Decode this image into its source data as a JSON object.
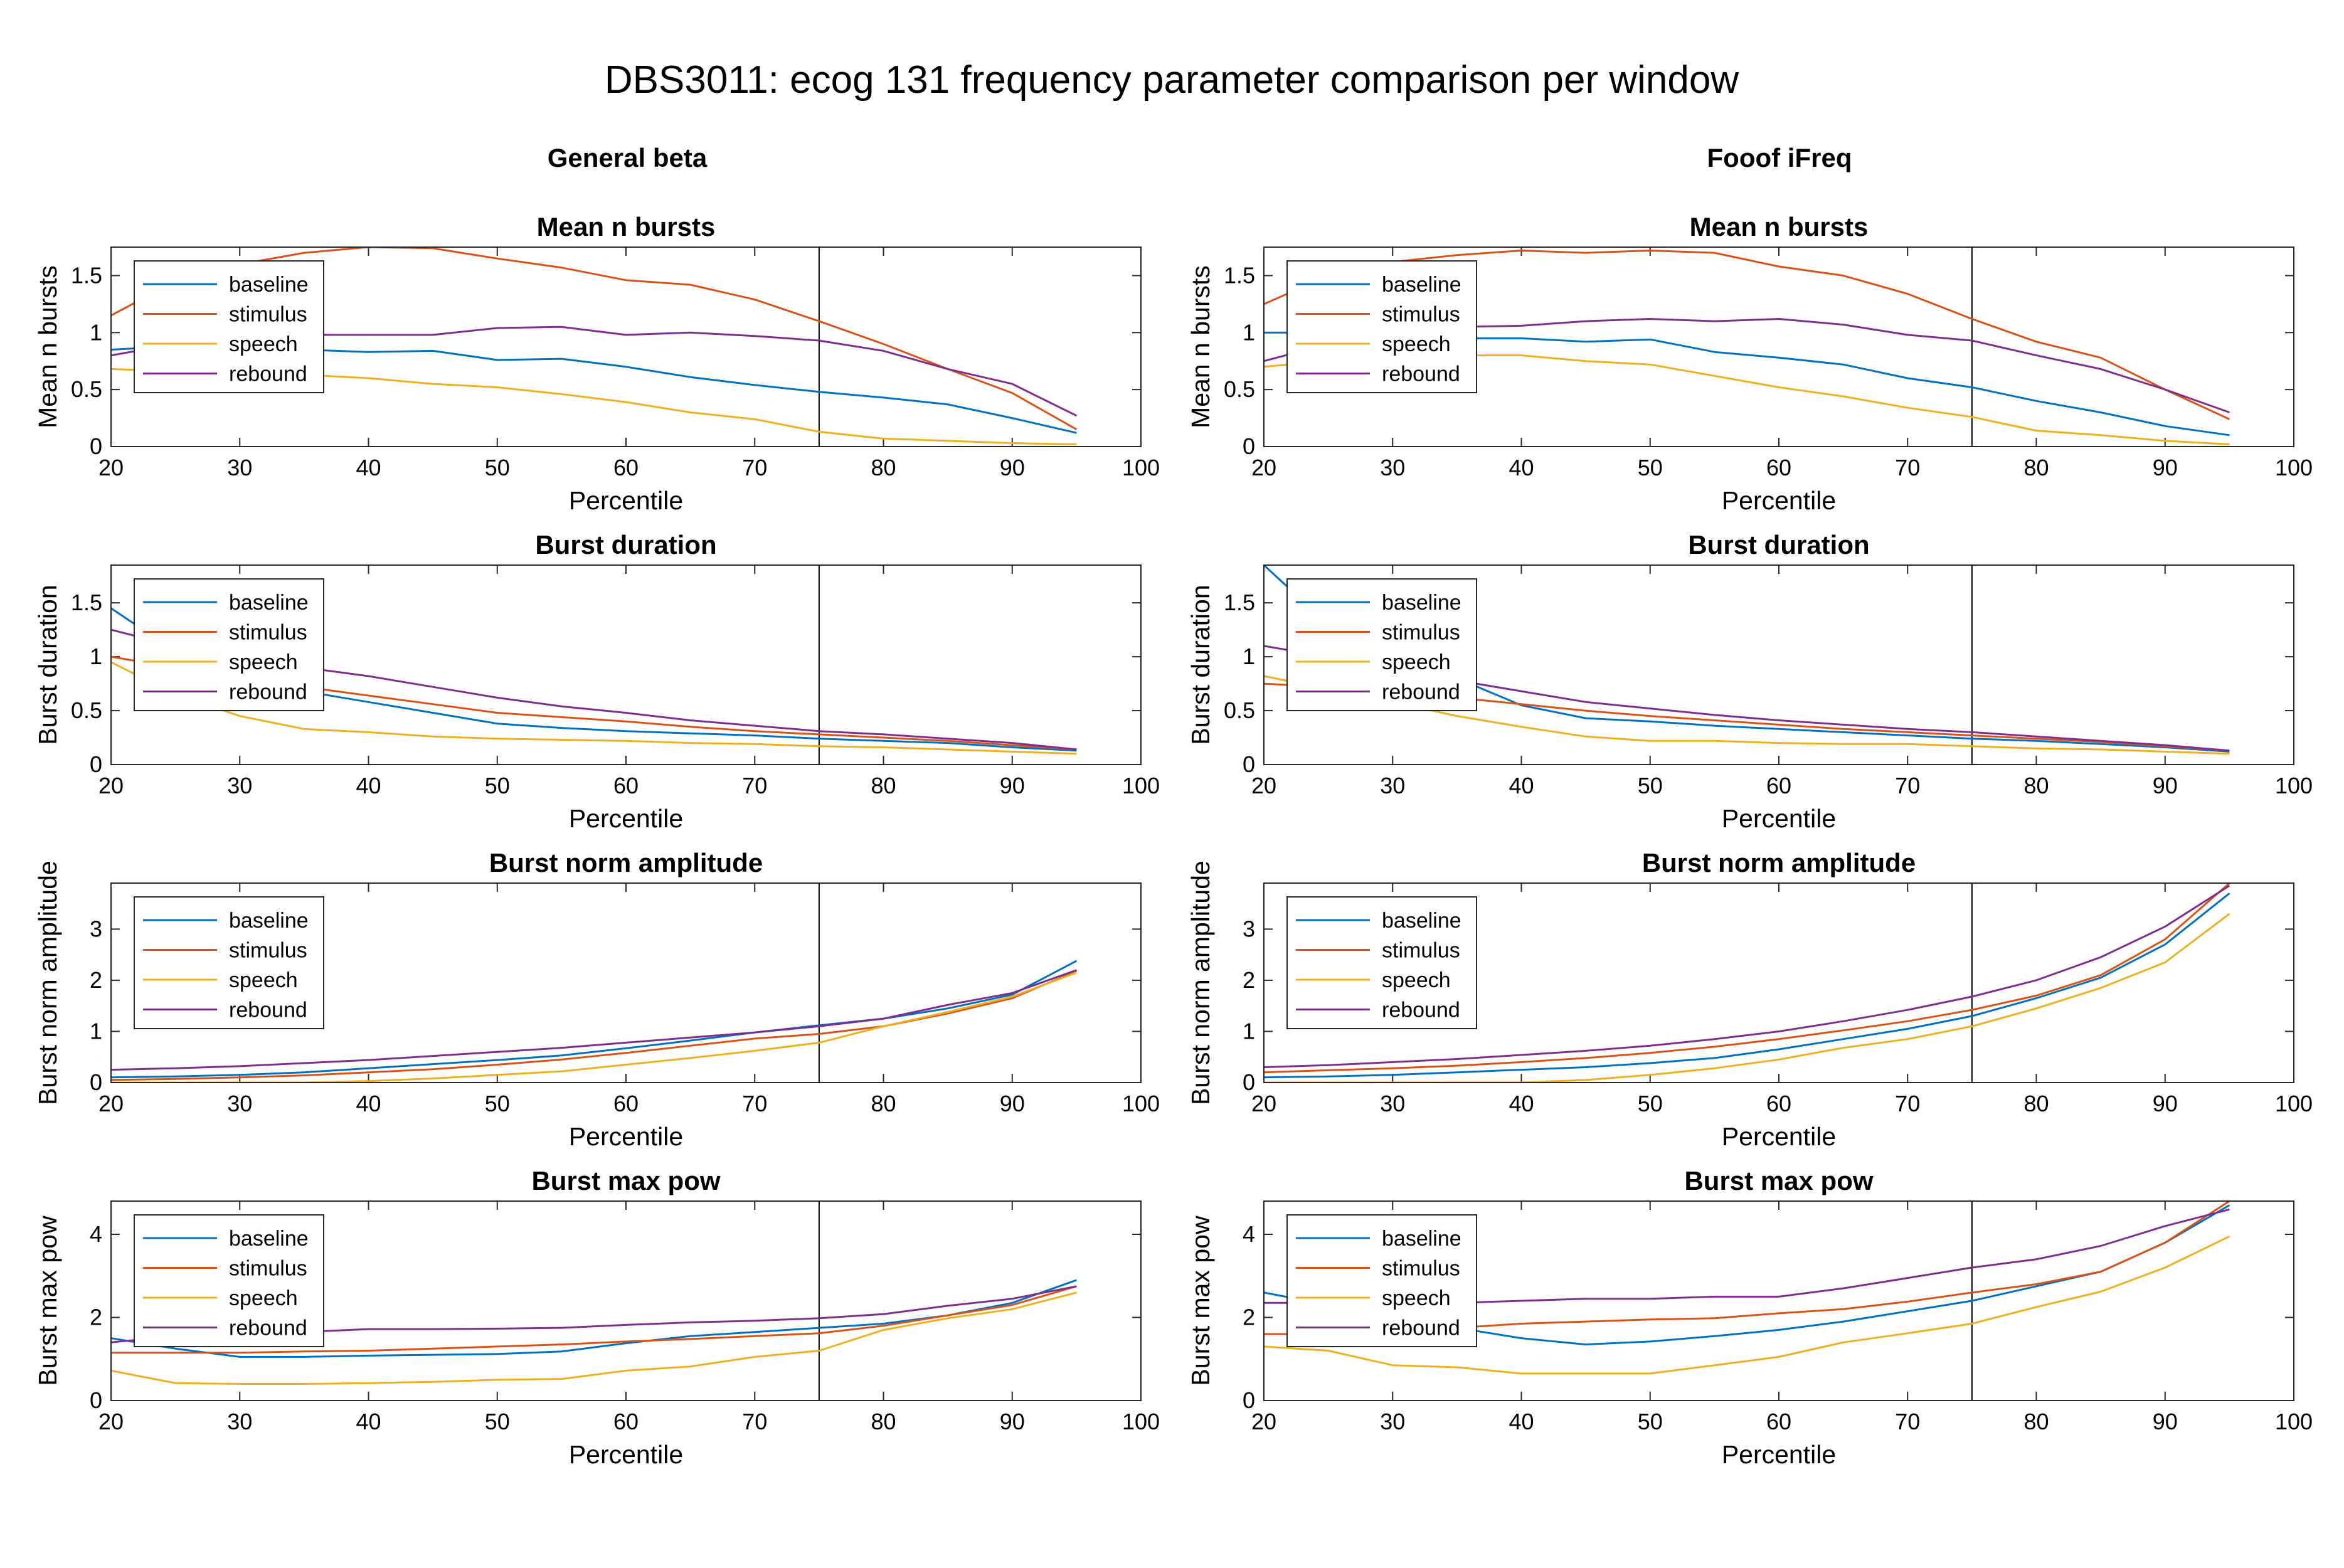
{
  "figure": {
    "title": "DBS3011: ecog 131 frequency parameter comparison per window",
    "columns": [
      "General beta",
      "Fooof iFreq"
    ],
    "background": "#ffffff"
  },
  "series_styles": [
    {
      "name": "baseline",
      "color": "#0072BD"
    },
    {
      "name": "stimulus",
      "color": "#D95319"
    },
    {
      "name": "speech",
      "color": "#EDB120"
    },
    {
      "name": "rebound",
      "color": "#7E2F8E"
    }
  ],
  "chart_data": [
    {
      "id": "gb-mean-n-bursts",
      "type": "line",
      "column": 0,
      "row": 0,
      "title": "Mean n bursts",
      "xlabel": "Percentile",
      "ylabel": "Mean n bursts",
      "xlim": [
        20,
        100
      ],
      "ylim": [
        0,
        1.75
      ],
      "xticks": [
        20,
        30,
        40,
        50,
        60,
        70,
        80,
        90,
        100
      ],
      "yticks": [
        0,
        0.5,
        1,
        1.5
      ],
      "vline": 75,
      "legend": "top-left",
      "x": [
        20,
        25,
        30,
        35,
        40,
        45,
        50,
        55,
        60,
        65,
        70,
        75,
        80,
        85,
        90,
        95
      ],
      "series": [
        {
          "name": "baseline",
          "values": [
            0.85,
            0.88,
            0.88,
            0.85,
            0.83,
            0.84,
            0.76,
            0.77,
            0.7,
            0.61,
            0.54,
            0.48,
            0.43,
            0.37,
            0.25,
            0.12
          ]
        },
        {
          "name": "stimulus",
          "values": [
            1.15,
            1.45,
            1.6,
            1.7,
            1.75,
            1.74,
            1.65,
            1.57,
            1.46,
            1.42,
            1.29,
            1.1,
            0.9,
            0.68,
            0.47,
            0.15
          ]
        },
        {
          "name": "speech",
          "values": [
            0.68,
            0.66,
            0.65,
            0.63,
            0.6,
            0.55,
            0.52,
            0.46,
            0.39,
            0.3,
            0.24,
            0.13,
            0.07,
            0.05,
            0.03,
            0.02
          ]
        },
        {
          "name": "rebound",
          "values": [
            0.8,
            0.9,
            0.95,
            0.98,
            0.98,
            0.98,
            1.04,
            1.05,
            0.98,
            1.0,
            0.97,
            0.93,
            0.84,
            0.68,
            0.55,
            0.27
          ]
        }
      ]
    },
    {
      "id": "gb-burst-duration",
      "type": "line",
      "column": 0,
      "row": 1,
      "title": "Burst duration",
      "xlabel": "Percentile",
      "ylabel": "Burst duration",
      "xlim": [
        20,
        100
      ],
      "ylim": [
        0,
        1.85
      ],
      "xticks": [
        20,
        30,
        40,
        50,
        60,
        70,
        80,
        90,
        100
      ],
      "yticks": [
        0,
        0.5,
        1,
        1.5
      ],
      "vline": 75,
      "legend": "top-left",
      "x": [
        20,
        25,
        30,
        35,
        40,
        45,
        50,
        55,
        60,
        65,
        70,
        75,
        80,
        85,
        90,
        95
      ],
      "series": [
        {
          "name": "baseline",
          "values": [
            1.45,
            1.05,
            0.78,
            0.68,
            0.58,
            0.48,
            0.38,
            0.34,
            0.31,
            0.29,
            0.27,
            0.24,
            0.22,
            0.2,
            0.16,
            0.13
          ]
        },
        {
          "name": "stimulus",
          "values": [
            1.0,
            0.9,
            0.82,
            0.72,
            0.64,
            0.56,
            0.48,
            0.44,
            0.4,
            0.35,
            0.31,
            0.28,
            0.25,
            0.22,
            0.18,
            0.14
          ]
        },
        {
          "name": "speech",
          "values": [
            0.95,
            0.65,
            0.45,
            0.33,
            0.3,
            0.26,
            0.24,
            0.23,
            0.22,
            0.2,
            0.19,
            0.17,
            0.16,
            0.14,
            0.12,
            0.1
          ]
        },
        {
          "name": "rebound",
          "values": [
            1.25,
            1.1,
            0.98,
            0.9,
            0.82,
            0.72,
            0.62,
            0.54,
            0.48,
            0.41,
            0.36,
            0.31,
            0.28,
            0.24,
            0.2,
            0.14
          ]
        }
      ]
    },
    {
      "id": "gb-burst-norm-amplitude",
      "type": "line",
      "column": 0,
      "row": 2,
      "title": "Burst norm amplitude",
      "xlabel": "Percentile",
      "ylabel": "Burst norm amplitude",
      "xlim": [
        20,
        100
      ],
      "ylim": [
        0,
        3.9
      ],
      "xticks": [
        20,
        30,
        40,
        50,
        60,
        70,
        80,
        90,
        100
      ],
      "yticks": [
        0,
        1,
        2,
        3
      ],
      "vline": 75,
      "legend": "top-left",
      "x": [
        20,
        25,
        30,
        35,
        40,
        45,
        50,
        55,
        60,
        65,
        70,
        75,
        80,
        85,
        90,
        95
      ],
      "series": [
        {
          "name": "baseline",
          "values": [
            0.1,
            0.12,
            0.15,
            0.2,
            0.28,
            0.36,
            0.44,
            0.53,
            0.67,
            0.82,
            0.98,
            1.12,
            1.25,
            1.45,
            1.72,
            2.38
          ]
        },
        {
          "name": "stimulus",
          "values": [
            0.05,
            0.07,
            0.1,
            0.14,
            0.2,
            0.26,
            0.35,
            0.45,
            0.58,
            0.72,
            0.86,
            0.95,
            1.1,
            1.35,
            1.65,
            2.18
          ]
        },
        {
          "name": "speech",
          "values": [
            0.0,
            0.0,
            0.0,
            0.0,
            0.03,
            0.08,
            0.15,
            0.22,
            0.35,
            0.48,
            0.62,
            0.78,
            1.1,
            1.38,
            1.68,
            2.15
          ]
        },
        {
          "name": "rebound",
          "values": [
            0.25,
            0.28,
            0.32,
            0.38,
            0.44,
            0.52,
            0.6,
            0.68,
            0.78,
            0.88,
            0.98,
            1.1,
            1.25,
            1.52,
            1.75,
            2.2
          ]
        }
      ]
    },
    {
      "id": "gb-burst-max-pow",
      "type": "line",
      "column": 0,
      "row": 3,
      "title": "Burst max pow",
      "xlabel": "Percentile",
      "ylabel": "Burst max pow",
      "xlim": [
        20,
        100
      ],
      "ylim": [
        0,
        4.8
      ],
      "xticks": [
        20,
        30,
        40,
        50,
        60,
        70,
        80,
        90,
        100
      ],
      "yticks": [
        0,
        2,
        4
      ],
      "vline": 75,
      "legend": "top-left",
      "x": [
        20,
        25,
        30,
        35,
        40,
        45,
        50,
        55,
        60,
        65,
        70,
        75,
        80,
        85,
        90,
        95
      ],
      "series": [
        {
          "name": "baseline",
          "values": [
            1.5,
            1.25,
            1.05,
            1.05,
            1.08,
            1.1,
            1.12,
            1.18,
            1.38,
            1.55,
            1.65,
            1.75,
            1.85,
            2.05,
            2.35,
            2.9
          ]
        },
        {
          "name": "stimulus",
          "values": [
            1.15,
            1.15,
            1.15,
            1.18,
            1.2,
            1.25,
            1.3,
            1.35,
            1.42,
            1.48,
            1.55,
            1.62,
            1.8,
            2.05,
            2.3,
            2.75
          ]
        },
        {
          "name": "speech",
          "values": [
            0.72,
            0.42,
            0.4,
            0.4,
            0.42,
            0.45,
            0.5,
            0.52,
            0.72,
            0.82,
            1.05,
            1.2,
            1.7,
            1.98,
            2.2,
            2.6
          ]
        },
        {
          "name": "rebound",
          "values": [
            1.4,
            1.55,
            1.6,
            1.65,
            1.72,
            1.72,
            1.73,
            1.75,
            1.82,
            1.88,
            1.92,
            1.98,
            2.08,
            2.28,
            2.45,
            2.75
          ]
        }
      ]
    },
    {
      "id": "ff-mean-n-bursts",
      "type": "line",
      "column": 1,
      "row": 0,
      "title": "Mean n bursts",
      "xlabel": "Percentile",
      "ylabel": "Mean n bursts",
      "xlim": [
        20,
        100
      ],
      "ylim": [
        0,
        1.75
      ],
      "xticks": [
        20,
        30,
        40,
        50,
        60,
        70,
        80,
        90,
        100
      ],
      "yticks": [
        0,
        0.5,
        1,
        1.5
      ],
      "vline": 75,
      "legend": "top-left",
      "x": [
        20,
        25,
        30,
        35,
        40,
        45,
        50,
        55,
        60,
        65,
        70,
        75,
        80,
        85,
        90,
        95
      ],
      "series": [
        {
          "name": "baseline",
          "values": [
            1.0,
            1.0,
            0.98,
            0.95,
            0.95,
            0.92,
            0.94,
            0.83,
            0.78,
            0.72,
            0.6,
            0.52,
            0.4,
            0.3,
            0.18,
            0.1
          ]
        },
        {
          "name": "stimulus",
          "values": [
            1.25,
            1.5,
            1.62,
            1.68,
            1.72,
            1.7,
            1.72,
            1.7,
            1.58,
            1.5,
            1.34,
            1.12,
            0.92,
            0.78,
            0.5,
            0.24
          ]
        },
        {
          "name": "speech",
          "values": [
            0.7,
            0.75,
            0.78,
            0.8,
            0.8,
            0.75,
            0.72,
            0.62,
            0.52,
            0.44,
            0.34,
            0.26,
            0.14,
            0.1,
            0.05,
            0.02
          ]
        },
        {
          "name": "rebound",
          "values": [
            0.75,
            0.9,
            1.0,
            1.05,
            1.06,
            1.1,
            1.12,
            1.1,
            1.12,
            1.07,
            0.98,
            0.93,
            0.8,
            0.68,
            0.5,
            0.3
          ]
        }
      ]
    },
    {
      "id": "ff-burst-duration",
      "type": "line",
      "column": 1,
      "row": 1,
      "title": "Burst duration",
      "xlabel": "Percentile",
      "ylabel": "Burst duration",
      "xlim": [
        20,
        100
      ],
      "ylim": [
        0,
        1.85
      ],
      "xticks": [
        20,
        30,
        40,
        50,
        60,
        70,
        80,
        90,
        100
      ],
      "yticks": [
        0,
        0.5,
        1,
        1.5
      ],
      "vline": 75,
      "legend": "top-left",
      "x": [
        20,
        25,
        30,
        35,
        40,
        45,
        50,
        55,
        60,
        65,
        70,
        75,
        80,
        85,
        90,
        95
      ],
      "series": [
        {
          "name": "baseline",
          "values": [
            1.85,
            1.3,
            0.95,
            0.8,
            0.55,
            0.43,
            0.4,
            0.36,
            0.33,
            0.3,
            0.27,
            0.24,
            0.22,
            0.19,
            0.16,
            0.12
          ]
        },
        {
          "name": "stimulus",
          "values": [
            0.75,
            0.72,
            0.68,
            0.62,
            0.56,
            0.5,
            0.45,
            0.41,
            0.37,
            0.33,
            0.3,
            0.27,
            0.24,
            0.21,
            0.17,
            0.13
          ]
        },
        {
          "name": "speech",
          "values": [
            0.82,
            0.7,
            0.58,
            0.45,
            0.35,
            0.26,
            0.22,
            0.22,
            0.2,
            0.19,
            0.19,
            0.17,
            0.15,
            0.14,
            0.12,
            0.1
          ]
        },
        {
          "name": "rebound",
          "values": [
            1.1,
            1.0,
            0.9,
            0.78,
            0.68,
            0.58,
            0.52,
            0.46,
            0.41,
            0.37,
            0.33,
            0.3,
            0.26,
            0.22,
            0.18,
            0.13
          ]
        }
      ]
    },
    {
      "id": "ff-burst-norm-amplitude",
      "type": "line",
      "column": 1,
      "row": 2,
      "title": "Burst norm amplitude",
      "xlabel": "Percentile",
      "ylabel": "Burst norm amplitude",
      "xlim": [
        20,
        100
      ],
      "ylim": [
        0,
        3.9
      ],
      "xticks": [
        20,
        30,
        40,
        50,
        60,
        70,
        80,
        90,
        100
      ],
      "yticks": [
        0,
        1,
        2,
        3
      ],
      "vline": 75,
      "legend": "top-left",
      "x": [
        20,
        25,
        30,
        35,
        40,
        45,
        50,
        55,
        60,
        65,
        70,
        75,
        80,
        85,
        90,
        95
      ],
      "series": [
        {
          "name": "baseline",
          "values": [
            0.1,
            0.12,
            0.15,
            0.2,
            0.25,
            0.3,
            0.38,
            0.48,
            0.65,
            0.85,
            1.05,
            1.3,
            1.65,
            2.05,
            2.7,
            3.7
          ]
        },
        {
          "name": "stimulus",
          "values": [
            0.2,
            0.24,
            0.28,
            0.33,
            0.4,
            0.48,
            0.58,
            0.7,
            0.85,
            1.02,
            1.2,
            1.42,
            1.7,
            2.1,
            2.8,
            3.9
          ]
        },
        {
          "name": "speech",
          "values": [
            0.0,
            0.0,
            0.0,
            0.0,
            0.0,
            0.05,
            0.15,
            0.28,
            0.45,
            0.68,
            0.85,
            1.1,
            1.45,
            1.85,
            2.35,
            3.3
          ]
        },
        {
          "name": "rebound",
          "values": [
            0.3,
            0.34,
            0.4,
            0.46,
            0.54,
            0.62,
            0.72,
            0.85,
            1.0,
            1.2,
            1.42,
            1.68,
            2.0,
            2.45,
            3.05,
            3.85
          ]
        }
      ]
    },
    {
      "id": "ff-burst-max-pow",
      "type": "line",
      "column": 1,
      "row": 3,
      "title": "Burst max pow",
      "xlabel": "Percentile",
      "ylabel": "Burst max pow",
      "xlim": [
        20,
        100
      ],
      "ylim": [
        0,
        4.8
      ],
      "xticks": [
        20,
        30,
        40,
        50,
        60,
        70,
        80,
        90,
        100
      ],
      "yticks": [
        0,
        2,
        4
      ],
      "vline": 75,
      "legend": "top-left",
      "x": [
        20,
        25,
        30,
        35,
        40,
        45,
        50,
        55,
        60,
        65,
        70,
        75,
        80,
        85,
        90,
        95
      ],
      "series": [
        {
          "name": "baseline",
          "values": [
            2.6,
            2.3,
            2.0,
            1.75,
            1.5,
            1.35,
            1.42,
            1.55,
            1.7,
            1.9,
            2.15,
            2.4,
            2.75,
            3.1,
            3.8,
            4.7
          ]
        },
        {
          "name": "stimulus",
          "values": [
            1.6,
            1.6,
            1.65,
            1.75,
            1.85,
            1.9,
            1.95,
            1.98,
            2.1,
            2.2,
            2.38,
            2.6,
            2.8,
            3.1,
            3.8,
            4.8
          ]
        },
        {
          "name": "speech",
          "values": [
            1.3,
            1.2,
            0.85,
            0.8,
            0.65,
            0.65,
            0.65,
            0.85,
            1.05,
            1.4,
            1.62,
            1.85,
            2.25,
            2.62,
            3.2,
            3.95
          ]
        },
        {
          "name": "rebound",
          "values": [
            2.35,
            2.35,
            2.35,
            2.35,
            2.4,
            2.45,
            2.45,
            2.5,
            2.5,
            2.7,
            2.95,
            3.2,
            3.4,
            3.72,
            4.2,
            4.6
          ]
        }
      ]
    }
  ]
}
